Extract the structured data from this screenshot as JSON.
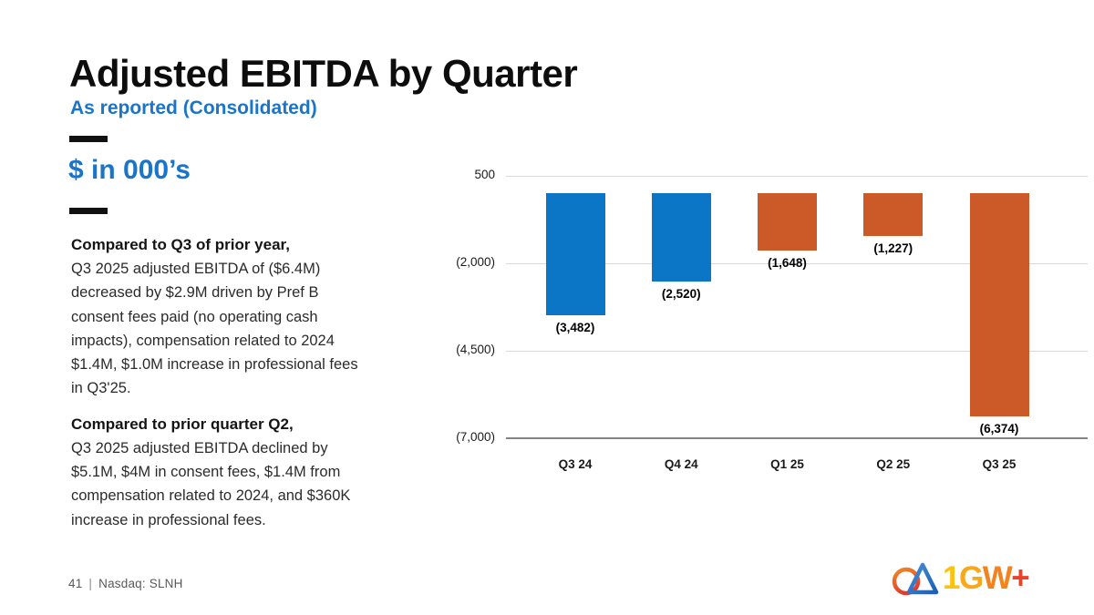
{
  "header": {
    "title": "Adjusted EBITDA by Quarter",
    "subtitle": "As reported (Consolidated)"
  },
  "left_panel": {
    "units_label": "$ in 000’s",
    "paragraphs": [
      {
        "heading": "Compared to Q3 of prior year,",
        "body": "Q3 2025 adjusted EBITDA of ($6.4M)\ndecreased by $2.9M driven by Pref B\nconsent fees paid (no operating cash\nimpacts), compensation related to 2024\n$1.4M, $1.0M increase in professional fees\nin Q3'25."
      },
      {
        "heading": "Compared to prior quarter Q2,",
        "body": "Q3 2025 adjusted EBITDA declined by\n$5.1M, $4M in consent fees, $1.4M from\ncompensation related to 2024, and $360K\nincrease in professional fees."
      }
    ]
  },
  "chart_data": {
    "type": "bar",
    "title": "",
    "xlabel": "",
    "ylabel": "",
    "categories": [
      "Q3 24",
      "Q4 24",
      "Q1 25",
      "Q2 25",
      "Q3 25"
    ],
    "values": [
      -3482,
      -2520,
      -1648,
      -1227,
      -6374
    ],
    "value_labels": [
      "(3,482)",
      "(2,520)",
      "(1,648)",
      "(1,227)",
      "(6,374)"
    ],
    "bar_colors": [
      "#0b76c6",
      "#0b76c6",
      "#cb5a28",
      "#cb5a28",
      "#cb5a28"
    ],
    "y_ticks": [
      {
        "label": "500",
        "value": 500
      },
      {
        "label": "(2,000)",
        "value": -2000
      },
      {
        "label": "(4,500)",
        "value": -4500
      },
      {
        "label": "(7,000)",
        "value": -7000
      }
    ],
    "ylim": [
      -7000,
      500
    ],
    "grid": true,
    "legend": "none"
  },
  "footer": {
    "page_number": "41",
    "separator": "|",
    "ticker": "Nasdaq: SLNH"
  },
  "logo": {
    "text": "1GW+",
    "letters": [
      {
        "char": "1",
        "color": "#fcc211"
      },
      {
        "char": "G",
        "color": "#f9a81d"
      },
      {
        "char": "W",
        "color": "#f4831f"
      },
      {
        "char": "+",
        "color": "#e8432b"
      }
    ]
  },
  "colors": {
    "accent_blue": "#1a75c9",
    "bar_blue": "#0b76c6",
    "bar_orange": "#cb5a28",
    "gridline": "#d9d9d9",
    "axis_line": "#848484",
    "footer_gray": "#595959"
  }
}
